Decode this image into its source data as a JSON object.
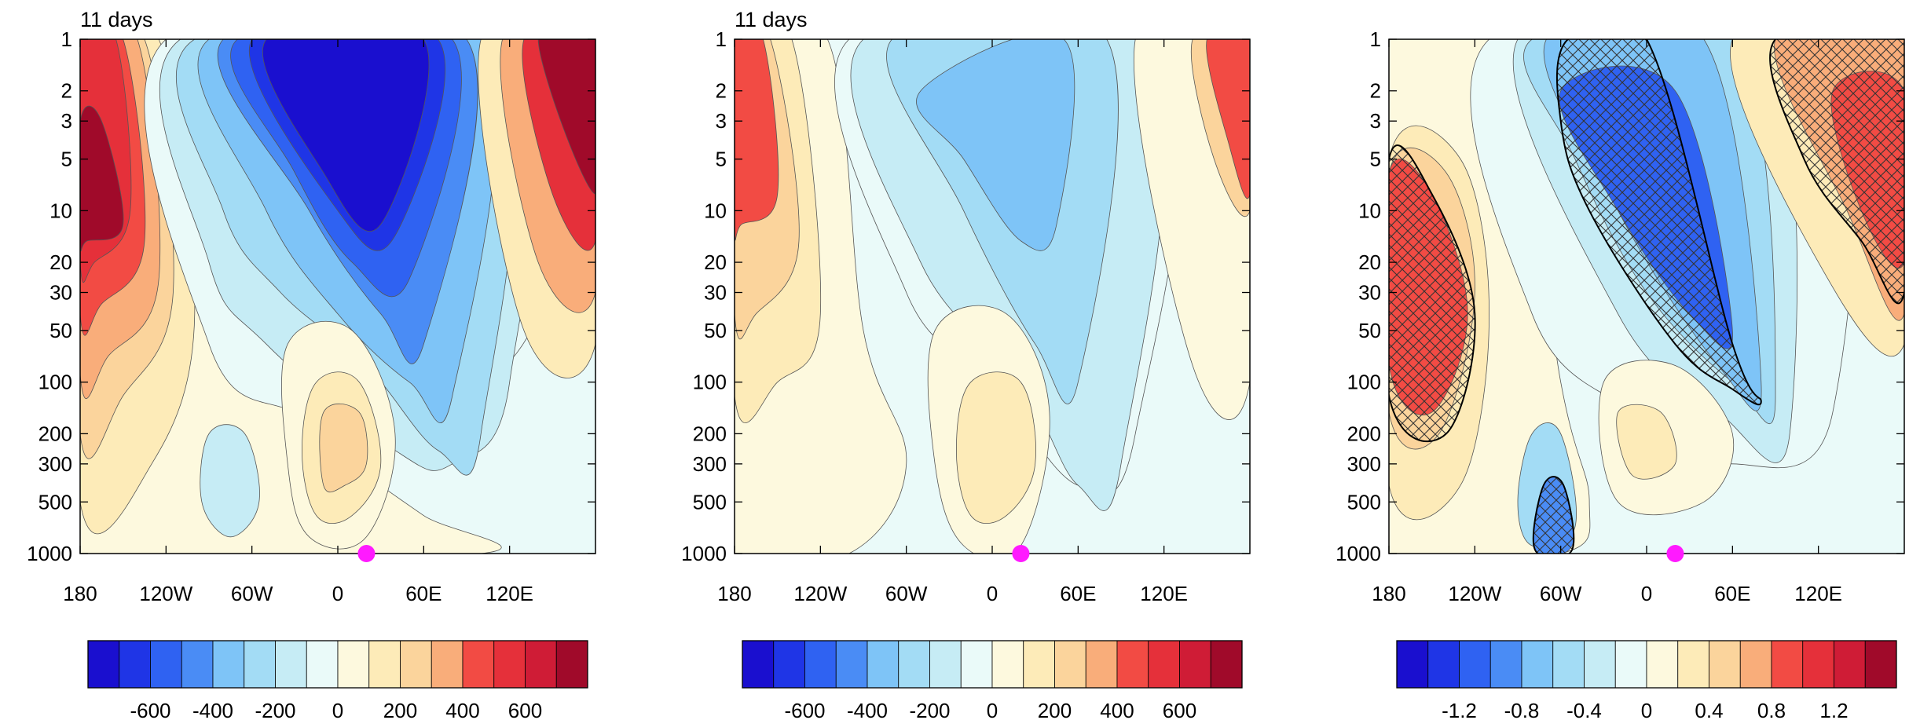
{
  "figure": {
    "panels": [
      {
        "title": "11 days"
      },
      {
        "title": "11 days"
      },
      {
        "title": ""
      }
    ]
  },
  "chart_data": [
    {
      "type": "heatmap",
      "title": "11 days",
      "xlabel": "",
      "ylabel": "",
      "x_ticks": [
        "180",
        "120W",
        "60W",
        "0",
        "60E",
        "120E"
      ],
      "x_tick_values": [
        -180,
        -120,
        -60,
        0,
        60,
        120
      ],
      "xlim": [
        -180,
        180
      ],
      "y_ticks": [
        "1",
        "2",
        "3",
        "5",
        "10",
        "20",
        "30",
        "50",
        "100",
        "200",
        "300",
        "500",
        "1000"
      ],
      "y_tick_values": [
        1,
        2,
        3,
        5,
        10,
        20,
        30,
        50,
        100,
        200,
        300,
        500,
        1000
      ],
      "ylim": [
        1000,
        1
      ],
      "y_scale": "log",
      "marker": {
        "lon": 20,
        "level": 1000,
        "color": "#ff1aff"
      },
      "colorbar": {
        "levels": [
          -700,
          -600,
          -500,
          -400,
          -300,
          -200,
          -100,
          0,
          100,
          200,
          300,
          400,
          500,
          600,
          700
        ],
        "labels": [
          "-600",
          "-400",
          "-200",
          "0",
          "200",
          "400",
          "600"
        ],
        "label_values": [
          -600,
          -400,
          -200,
          0,
          200,
          400,
          600
        ],
        "colors": [
          "#1a0fcf",
          "#1f35e6",
          "#2f62f2",
          "#4a8cf5",
          "#7ec4f7",
          "#a3dcf5",
          "#c6ecf5",
          "#eafaf9",
          "#fdf9de",
          "#fdebb8",
          "#fbd49c",
          "#f9ad7a",
          "#f24b44",
          "#e5303a",
          "#cf1c36",
          "#a00a2a"
        ]
      }
    },
    {
      "type": "heatmap",
      "title": "11 days",
      "xlabel": "",
      "ylabel": "",
      "x_ticks": [
        "180",
        "120W",
        "60W",
        "0",
        "60E",
        "120E"
      ],
      "x_tick_values": [
        -180,
        -120,
        -60,
        0,
        60,
        120
      ],
      "xlim": [
        -180,
        180
      ],
      "y_ticks": [
        "1",
        "2",
        "3",
        "5",
        "10",
        "20",
        "30",
        "50",
        "100",
        "200",
        "300",
        "500",
        "1000"
      ],
      "y_tick_values": [
        1,
        2,
        3,
        5,
        10,
        20,
        30,
        50,
        100,
        200,
        300,
        500,
        1000
      ],
      "ylim": [
        1000,
        1
      ],
      "y_scale": "log",
      "marker": {
        "lon": 20,
        "level": 1000,
        "color": "#ff1aff"
      },
      "colorbar": {
        "levels": [
          -700,
          -600,
          -500,
          -400,
          -300,
          -200,
          -100,
          0,
          100,
          200,
          300,
          400,
          500,
          600,
          700
        ],
        "labels": [
          "-600",
          "-400",
          "-200",
          "0",
          "200",
          "400",
          "600"
        ],
        "label_values": [
          -600,
          -400,
          -200,
          0,
          200,
          400,
          600
        ],
        "colors": [
          "#1a0fcf",
          "#1f35e6",
          "#2f62f2",
          "#4a8cf5",
          "#7ec4f7",
          "#a3dcf5",
          "#c6ecf5",
          "#eafaf9",
          "#fdf9de",
          "#fdebb8",
          "#fbd49c",
          "#f9ad7a",
          "#f24b44",
          "#e5303a",
          "#cf1c36",
          "#a00a2a"
        ]
      }
    },
    {
      "type": "heatmap",
      "title": "",
      "xlabel": "",
      "ylabel": "",
      "x_ticks": [
        "180",
        "120W",
        "60W",
        "0",
        "60E",
        "120E"
      ],
      "x_tick_values": [
        -180,
        -120,
        -60,
        0,
        60,
        120
      ],
      "xlim": [
        -180,
        180
      ],
      "y_ticks": [
        "1",
        "2",
        "3",
        "5",
        "10",
        "20",
        "30",
        "50",
        "100",
        "200",
        "300",
        "500",
        "1000"
      ],
      "y_tick_values": [
        1,
        2,
        3,
        5,
        10,
        20,
        30,
        50,
        100,
        200,
        300,
        500,
        1000
      ],
      "ylim": [
        1000,
        1
      ],
      "y_scale": "log",
      "hatching": "significance",
      "marker": {
        "lon": 20,
        "level": 1000,
        "color": "#ff1aff"
      },
      "colorbar": {
        "levels": [
          -1.4,
          -1.2,
          -1.0,
          -0.8,
          -0.6,
          -0.4,
          -0.2,
          0,
          0.2,
          0.4,
          0.6,
          0.8,
          1.0,
          1.2,
          1.4
        ],
        "labels": [
          "-1.2",
          "-0.8",
          "-0.4",
          "0",
          "0.4",
          "0.8",
          "1.2"
        ],
        "label_values": [
          -1.2,
          -0.8,
          -0.4,
          0,
          0.4,
          0.8,
          1.2
        ],
        "colors": [
          "#1a0fcf",
          "#1f35e6",
          "#2f62f2",
          "#4a8cf5",
          "#7ec4f7",
          "#a3dcf5",
          "#c6ecf5",
          "#eafaf9",
          "#fdf9de",
          "#fdebb8",
          "#fbd49c",
          "#f9ad7a",
          "#f24b44",
          "#e5303a",
          "#cf1c36",
          "#a00a2a"
        ]
      }
    }
  ]
}
